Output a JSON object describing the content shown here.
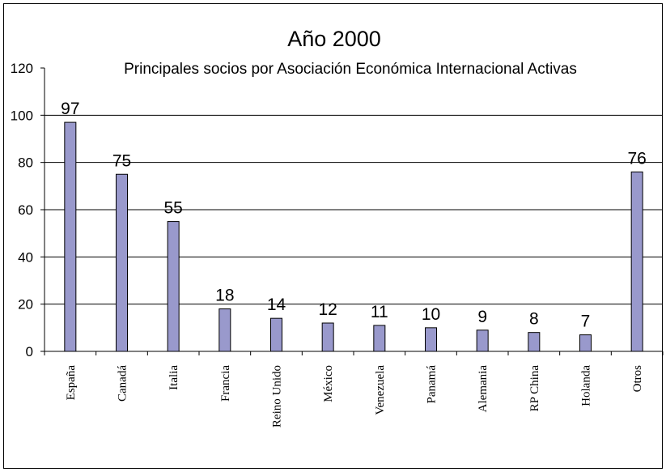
{
  "chart_data": {
    "type": "bar",
    "title": "Año 2000",
    "subtitle": "Principales socios por Asociación Económica Internacional Activas",
    "xlabel": "",
    "ylabel": "",
    "ylim": [
      0,
      120
    ],
    "yticks": [
      0,
      20,
      40,
      60,
      80,
      100,
      120
    ],
    "grid": true,
    "legend": "none",
    "bar_color": "#9999cc",
    "categories": [
      "España",
      "Canadá",
      "Italia",
      "Francia",
      "Reino Unido",
      "México",
      "Venezuela",
      "Panamá",
      "Alemania",
      "RP China",
      "Holanda",
      "Otros"
    ],
    "values": [
      97,
      75,
      55,
      18,
      14,
      12,
      11,
      10,
      9,
      8,
      7,
      76
    ]
  }
}
